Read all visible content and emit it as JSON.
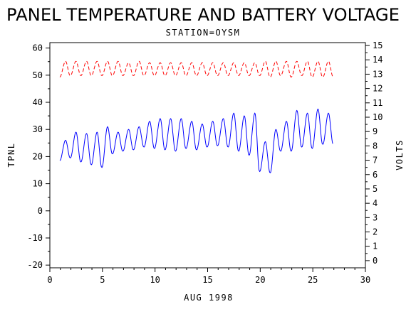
{
  "chart_data": {
    "type": "line",
    "title": "PANEL TEMPERATURE AND BATTERY VOLTAGE",
    "subtitle": "STATION=OYSM",
    "xlabel": "AUG 1998",
    "ylabel_left": "TPNL",
    "ylabel_right": "VOLTS",
    "xlim": [
      0,
      30
    ],
    "ylim_left": [
      -21,
      62
    ],
    "ylim_right": [
      -0.5,
      15.2
    ],
    "x_ticks": [
      "0",
      "5",
      "10",
      "15",
      "20",
      "25",
      "30"
    ],
    "y_left_ticks": [
      "-20",
      "-10",
      "0",
      "10",
      "20",
      "30",
      "40",
      "50",
      "60"
    ],
    "y_right_ticks": [
      "0",
      "1",
      "2",
      "3",
      "4",
      "5",
      "6",
      "7",
      "8",
      "9",
      "10",
      "11",
      "12",
      "13",
      "14",
      "15"
    ],
    "grid": false,
    "series": [
      {
        "axis": "left",
        "color": "#0000ff",
        "style": "solid",
        "daily": [
          {
            "day": 1,
            "min": 18.5,
            "max": 26
          },
          {
            "day": 2,
            "min": 19.5,
            "max": 29
          },
          {
            "day": 3,
            "min": 18,
            "max": 28.5
          },
          {
            "day": 4,
            "min": 17,
            "max": 29
          },
          {
            "day": 5,
            "min": 16,
            "max": 31
          },
          {
            "day": 6,
            "min": 21,
            "max": 29
          },
          {
            "day": 7,
            "min": 22,
            "max": 30
          },
          {
            "day": 8,
            "min": 22.5,
            "max": 31
          },
          {
            "day": 9,
            "min": 23.5,
            "max": 33
          },
          {
            "day": 10,
            "min": 23,
            "max": 34
          },
          {
            "day": 11,
            "min": 22.5,
            "max": 34
          },
          {
            "day": 12,
            "min": 22,
            "max": 34
          },
          {
            "day": 13,
            "min": 23,
            "max": 33
          },
          {
            "day": 14,
            "min": 22.5,
            "max": 32
          },
          {
            "day": 15,
            "min": 23.5,
            "max": 33
          },
          {
            "day": 16,
            "min": 24,
            "max": 34
          },
          {
            "day": 17,
            "min": 23.5,
            "max": 36
          },
          {
            "day": 18,
            "min": 22,
            "max": 35
          },
          {
            "day": 19,
            "min": 20.5,
            "max": 36
          },
          {
            "day": 20,
            "min": 14.5,
            "max": 25.5
          },
          {
            "day": 21,
            "min": 14,
            "max": 30
          },
          {
            "day": 22,
            "min": 22,
            "max": 33
          },
          {
            "day": 23,
            "min": 22,
            "max": 37
          },
          {
            "day": 24,
            "min": 23.5,
            "max": 36
          },
          {
            "day": 25,
            "min": 23,
            "max": 37.5
          },
          {
            "day": 26,
            "min": 24.5,
            "max": 36
          }
        ]
      },
      {
        "axis": "right",
        "color": "#ff0000",
        "style": "dashed",
        "daily": [
          {
            "day": 1,
            "min": 12.8,
            "max": 13.9
          },
          {
            "day": 2,
            "min": 12.9,
            "max": 13.9
          },
          {
            "day": 3,
            "min": 12.9,
            "max": 13.9
          },
          {
            "day": 4,
            "min": 12.9,
            "max": 13.9
          },
          {
            "day": 5,
            "min": 12.9,
            "max": 13.9
          },
          {
            "day": 6,
            "min": 12.9,
            "max": 13.9
          },
          {
            "day": 7,
            "min": 12.9,
            "max": 13.8
          },
          {
            "day": 8,
            "min": 12.9,
            "max": 13.9
          },
          {
            "day": 9,
            "min": 12.9,
            "max": 13.8
          },
          {
            "day": 10,
            "min": 12.9,
            "max": 13.8
          },
          {
            "day": 11,
            "min": 12.9,
            "max": 13.8
          },
          {
            "day": 12,
            "min": 12.9,
            "max": 13.8
          },
          {
            "day": 13,
            "min": 12.9,
            "max": 13.8
          },
          {
            "day": 14,
            "min": 12.9,
            "max": 13.8
          },
          {
            "day": 15,
            "min": 12.9,
            "max": 13.8
          },
          {
            "day": 16,
            "min": 12.9,
            "max": 13.8
          },
          {
            "day": 17,
            "min": 12.9,
            "max": 13.8
          },
          {
            "day": 18,
            "min": 12.9,
            "max": 13.8
          },
          {
            "day": 19,
            "min": 12.9,
            "max": 13.8
          },
          {
            "day": 20,
            "min": 12.9,
            "max": 13.9
          },
          {
            "day": 21,
            "min": 12.8,
            "max": 13.9
          },
          {
            "day": 22,
            "min": 12.9,
            "max": 13.9
          },
          {
            "day": 23,
            "min": 12.8,
            "max": 13.9
          },
          {
            "day": 24,
            "min": 12.9,
            "max": 13.9
          },
          {
            "day": 25,
            "min": 12.8,
            "max": 13.9
          },
          {
            "day": 26,
            "min": 12.8,
            "max": 13.9
          }
        ]
      }
    ]
  }
}
